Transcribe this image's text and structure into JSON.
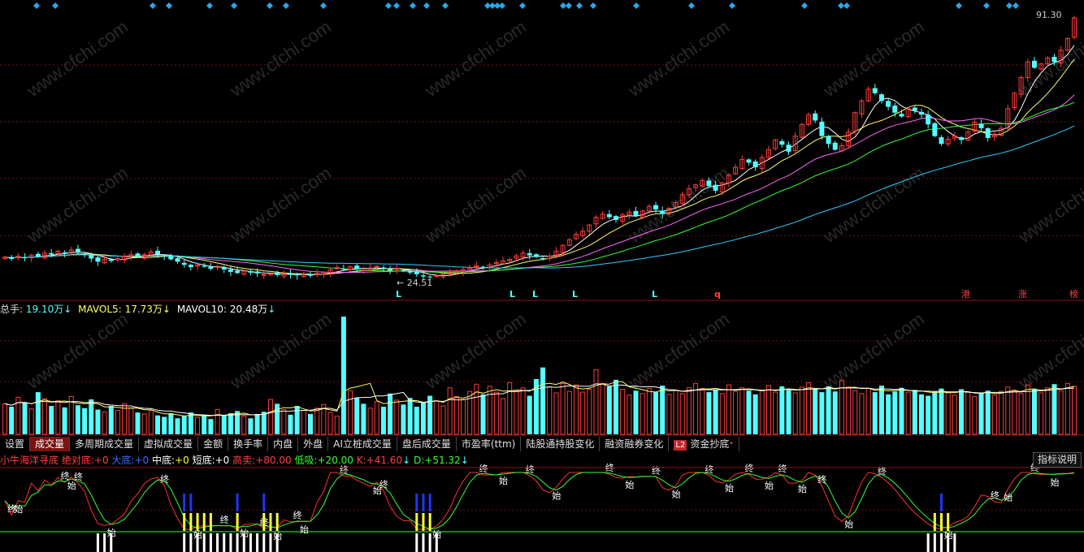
{
  "price_panel": {
    "high_label": "91.30",
    "low_label": "24.51",
    "signal_letters": [
      "L",
      "L",
      "L",
      "L",
      "L",
      "q"
    ],
    "side_labels": [
      "港",
      "涨",
      "榜"
    ]
  },
  "volume_panel": {
    "total": {
      "label": "总手:",
      "value": "19.10万",
      "arrow": "↓"
    },
    "mavol5": {
      "label": "MAVOL5:",
      "value": "17.73万",
      "arrow": "↓"
    },
    "mavol10": {
      "label": "MAVOL10:",
      "value": "20.48万",
      "arrow": "↓"
    }
  },
  "tabs": [
    "设置",
    "成交量",
    "多周期成交量",
    "虚拟成交量",
    "金额",
    "换手率",
    "内盘",
    "外盘",
    "AI立桩成交量",
    "盘后成交量",
    "市盈率(ttm)",
    "陆股通持股变化",
    "融资融券变化",
    "资金抄底"
  ],
  "active_tab": "成交量",
  "tab_badge": "L2",
  "indicator": {
    "name": "小牛海洋寻底",
    "p1": {
      "label": "绝对底:",
      "value": "+0"
    },
    "p2": {
      "label": "大底:",
      "value": "+0"
    },
    "p3": {
      "label": "中底:",
      "value": "+0"
    },
    "p4": {
      "label": "短底:",
      "value": "+0"
    },
    "p5": {
      "label": "高卖:",
      "value": "+80.00"
    },
    "p6": {
      "label": "低吸:",
      "value": "+20.00"
    },
    "p7": {
      "label": "K:",
      "value": "+41.60",
      "arrow": "↓"
    },
    "p8": {
      "label": "D:",
      "value": "+51.32",
      "arrow": "↓"
    },
    "help": "指标说明",
    "marks": {
      "start": "始",
      "end": "终"
    }
  },
  "watermark": "www.cfchi.com",
  "colors": {
    "up": "#ff3b3b",
    "down": "#54ffff",
    "ma5": "#ffffff",
    "ma10": "#ffff66",
    "ma20": "#ff66ff",
    "ma30": "#33ff33",
    "ma60": "#33ccff",
    "diamond": "#2ba7e8"
  },
  "chart_data": {
    "type": "candlestick",
    "price_range": [
      24.51,
      91.3
    ],
    "close": [
      30.0,
      29.5,
      30.2,
      29.8,
      30.5,
      30.1,
      31.0,
      30.6,
      31.5,
      31.0,
      31.8,
      31.2,
      30.6,
      29.6,
      28.8,
      29.4,
      29.0,
      29.6,
      30.2,
      30.6,
      30.0,
      30.6,
      31.3,
      30.7,
      30.3,
      29.4,
      28.8,
      28.0,
      27.4,
      28.0,
      27.5,
      27.0,
      27.6,
      26.8,
      26.2,
      25.9,
      26.4,
      26.0,
      25.8,
      25.5,
      25.7,
      25.4,
      25.8,
      25.4,
      25.3,
      25.6,
      25.2,
      25.8,
      26.0,
      26.7,
      27.3,
      26.9,
      27.5,
      27.0,
      26.7,
      27.2,
      27.6,
      26.9,
      26.5,
      27.0,
      26.4,
      26.0,
      25.6,
      25.0,
      24.8,
      25.2,
      25.6,
      26.0,
      26.5,
      26.8,
      27.2,
      27.8,
      27.4,
      28.0,
      28.6,
      29.0,
      29.4,
      30.3,
      31.0,
      30.4,
      30.0,
      29.6,
      30.2,
      31.5,
      33.0,
      34.4,
      35.8,
      36.6,
      38.2,
      40.2,
      41.0,
      40.2,
      39.5,
      40.8,
      41.5,
      40.5,
      41.8,
      43.0,
      42.2,
      41.0,
      42.5,
      44.0,
      46.0,
      47.5,
      48.5,
      49.6,
      48.2,
      47.0,
      49.0,
      51.0,
      53.0,
      55.0,
      54.2,
      53.0,
      55.5,
      57.5,
      60.0,
      58.8,
      57.0,
      61.0,
      64.0,
      66.5,
      65.0,
      61.0,
      59.0,
      57.5,
      58.5,
      62.0,
      67.0,
      70.0,
      73.0,
      72.0,
      70.0,
      68.5,
      67.0,
      66.0,
      68.0,
      67.5,
      66.5,
      64.0,
      61.0,
      59.0,
      60.2,
      61.0,
      60.0,
      62.0,
      64.5,
      63.0,
      60.5,
      61.5,
      63.0,
      68.0,
      72.0,
      76.0,
      80.0,
      78.5,
      79.5,
      81.0,
      80.0,
      83.0,
      86.0,
      91.3
    ],
    "volume": [
      4.2,
      3.8,
      5.1,
      4.4,
      3.5,
      5.8,
      4.9,
      3.9,
      4.6,
      3.7,
      5.2,
      4.0,
      3.6,
      4.8,
      3.4,
      3.1,
      3.9,
      3.3,
      4.2,
      3.6,
      3.0,
      2.8,
      3.3,
      2.6,
      2.4,
      2.9,
      2.2,
      2.5,
      3.0,
      2.3,
      2.7,
      2.1,
      3.4,
      2.6,
      2.9,
      3.2,
      2.5,
      2.2,
      2.8,
      3.1,
      4.8,
      4.2,
      3.4,
      2.7,
      3.9,
      3.3,
      2.8,
      3.6,
      4.1,
      3.0,
      2.5,
      16.2,
      6.0,
      5.0,
      4.2,
      3.6,
      4.5,
      3.8,
      5.6,
      4.7,
      4.1,
      5.0,
      3.8,
      4.4,
      5.3,
      4.6,
      3.9,
      6.4,
      5.2,
      4.8,
      5.9,
      6.9,
      5.5,
      6.6,
      5.8,
      4.9,
      7.1,
      6.0,
      6.4,
      5.3,
      7.6,
      9.2,
      6.5,
      5.7,
      7.0,
      5.9,
      6.8,
      5.8,
      6.2,
      8.9,
      7.0,
      6.6,
      7.5,
      6.2,
      5.4,
      6.0,
      5.6,
      6.3,
      5.8,
      6.7,
      5.5,
      6.0,
      5.6,
      6.4,
      7.0,
      6.3,
      5.8,
      6.2,
      5.6,
      6.8,
      5.9,
      6.4,
      6.0,
      5.5,
      6.1,
      6.7,
      5.8,
      6.6,
      6.1,
      5.7,
      6.5,
      7.1,
      6.2,
      5.8,
      6.6,
      5.9,
      7.4,
      6.5,
      6.0,
      5.6,
      6.3,
      5.8,
      6.7,
      5.5,
      5.9,
      6.4,
      5.8,
      6.1,
      5.5,
      5.3,
      5.9,
      6.3,
      5.7,
      5.4,
      6.2,
      5.8,
      5.2,
      5.7,
      6.0,
      5.4,
      5.9,
      6.5,
      6.1,
      5.6,
      6.8,
      6.2,
      5.7,
      6.4,
      6.9,
      6.0,
      7.0,
      6.6
    ]
  }
}
